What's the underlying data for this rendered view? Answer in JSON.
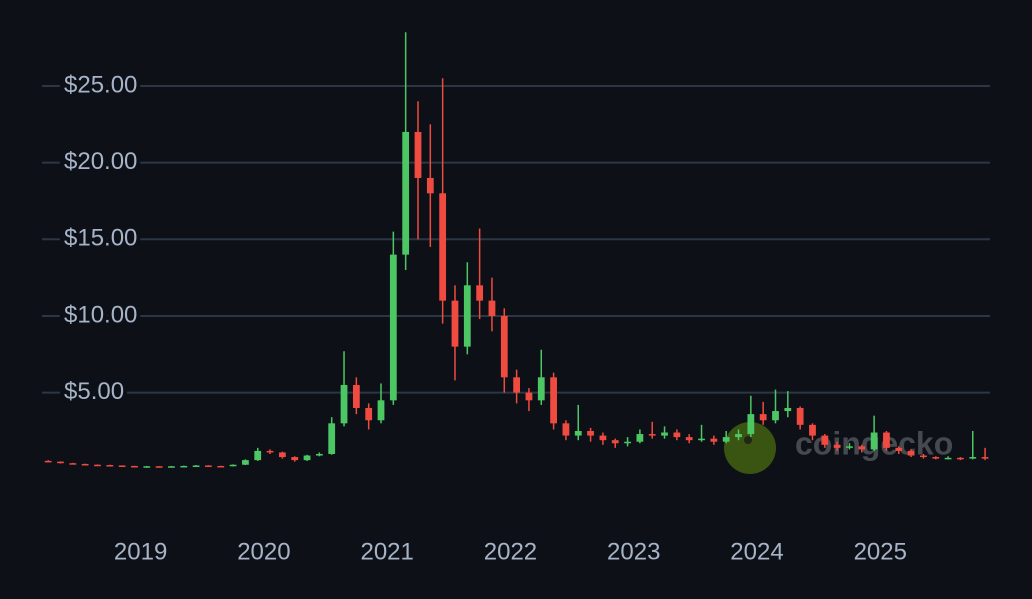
{
  "chart_data": {
    "type": "candlestick",
    "x": [
      2018.25,
      2018.35,
      2018.45,
      2018.55,
      2018.65,
      2018.75,
      2018.85,
      2018.95,
      2019.05,
      2019.15,
      2019.25,
      2019.35,
      2019.45,
      2019.55,
      2019.65,
      2019.75,
      2019.85,
      2019.95,
      2020.05,
      2020.15,
      2020.25,
      2020.35,
      2020.45,
      2020.55,
      2020.65,
      2020.75,
      2020.85,
      2020.95,
      2021.05,
      2021.15,
      2021.25,
      2021.35,
      2021.45,
      2021.55,
      2021.65,
      2021.75,
      2021.85,
      2021.95,
      2022.05,
      2022.15,
      2022.25,
      2022.35,
      2022.45,
      2022.55,
      2022.65,
      2022.75,
      2022.85,
      2022.95,
      2023.05,
      2023.15,
      2023.25,
      2023.35,
      2023.45,
      2023.55,
      2023.65,
      2023.75,
      2023.85,
      2023.95,
      2024.05,
      2024.15,
      2024.25,
      2024.35,
      2024.45,
      2024.55,
      2024.65,
      2024.75,
      2024.85,
      2024.95,
      2025.05,
      2025.15,
      2025.25,
      2025.35,
      2025.45,
      2025.55,
      2025.65,
      2025.75,
      2025.85
    ],
    "open": [
      0.55,
      0.5,
      0.4,
      0.35,
      0.3,
      0.28,
      0.25,
      0.22,
      0.2,
      0.2,
      0.18,
      0.2,
      0.22,
      0.25,
      0.22,
      0.2,
      0.3,
      0.6,
      1.2,
      1.1,
      0.8,
      0.6,
      0.9,
      1.0,
      3.0,
      5.5,
      4.0,
      3.2,
      4.5,
      14,
      22,
      19,
      18,
      11,
      8,
      12,
      11,
      10,
      6,
      5,
      4.5,
      6,
      3,
      2.2,
      2.5,
      2.2,
      1.9,
      1.7,
      1.8,
      2.3,
      2.2,
      2.4,
      2.1,
      1.9,
      2.0,
      1.8,
      2.1,
      2.3,
      3.6,
      3.2,
      3.8,
      4.0,
      2.9,
      2.2,
      1.6,
      1.4,
      1.5,
      1.3,
      2.4,
      1.4,
      1.2,
      0.9,
      0.8,
      0.7,
      0.75,
      0.7,
      0.8
    ],
    "high": [
      0.6,
      0.52,
      0.42,
      0.37,
      0.32,
      0.3,
      0.26,
      0.23,
      0.22,
      0.21,
      0.22,
      0.24,
      0.28,
      0.27,
      0.23,
      0.32,
      0.65,
      1.4,
      1.3,
      1.15,
      0.85,
      0.95,
      1.1,
      3.4,
      7.7,
      6.0,
      4.3,
      5.6,
      15.5,
      28.5,
      24,
      22.5,
      25.5,
      12,
      13.5,
      15.7,
      12.5,
      10.5,
      6.5,
      5.3,
      7.8,
      6.3,
      3.2,
      4.2,
      2.7,
      2.4,
      2.0,
      2.1,
      2.6,
      3.1,
      2.8,
      2.6,
      2.3,
      2.9,
      2.2,
      2.5,
      2.6,
      4.8,
      4.4,
      5.2,
      5.1,
      4.1,
      3.0,
      2.3,
      1.8,
      1.7,
      1.6,
      3.5,
      2.5,
      1.5,
      1.3,
      1.0,
      0.85,
      0.85,
      0.8,
      2.5,
      1.4
    ],
    "low": [
      0.45,
      0.38,
      0.33,
      0.28,
      0.26,
      0.24,
      0.21,
      0.19,
      0.18,
      0.17,
      0.17,
      0.19,
      0.21,
      0.2,
      0.18,
      0.19,
      0.28,
      0.55,
      1.0,
      0.7,
      0.5,
      0.55,
      0.85,
      0.95,
      2.8,
      3.6,
      2.6,
      3.0,
      4.2,
      13,
      15,
      14.5,
      9.5,
      5.8,
      7.5,
      9.8,
      9,
      5,
      4.3,
      3.8,
      4.2,
      2.6,
      1.9,
      1.9,
      1.8,
      1.6,
      1.4,
      1.5,
      1.7,
      2.0,
      2.0,
      1.9,
      1.7,
      1.8,
      1.6,
      1.7,
      1.9,
      2.1,
      2.9,
      3.0,
      3.4,
      2.6,
      1.9,
      1.4,
      1.2,
      1.3,
      1.1,
      1.2,
      1.2,
      1.0,
      0.8,
      0.7,
      0.65,
      0.65,
      0.6,
      0.65,
      0.6
    ],
    "close": [
      0.5,
      0.4,
      0.35,
      0.3,
      0.28,
      0.25,
      0.22,
      0.2,
      0.2,
      0.18,
      0.2,
      0.22,
      0.25,
      0.22,
      0.2,
      0.3,
      0.6,
      1.2,
      1.1,
      0.8,
      0.6,
      0.9,
      1.0,
      3.0,
      5.5,
      4.0,
      3.2,
      4.5,
      14,
      22,
      19,
      18,
      11,
      8,
      12,
      11,
      10,
      6,
      5,
      4.5,
      6,
      3,
      2.2,
      2.5,
      2.2,
      1.9,
      1.7,
      1.8,
      2.3,
      2.2,
      2.4,
      2.1,
      1.9,
      2.0,
      1.8,
      2.1,
      2.3,
      3.6,
      3.2,
      3.8,
      4.0,
      2.9,
      2.2,
      1.6,
      1.4,
      1.5,
      1.3,
      2.4,
      1.4,
      1.2,
      0.9,
      0.8,
      0.7,
      0.75,
      0.7,
      0.8,
      0.7
    ],
    "up_color": "#4cc764",
    "down_color": "#ef4b40",
    "xlim": [
      2018.2,
      2025.89
    ],
    "xticks": [
      2019,
      2020,
      2021,
      2022,
      2023,
      2024,
      2025
    ],
    "ylim": [
      -2,
      29.3
    ],
    "yticks": [
      {
        "value": 5,
        "label": "$5.00"
      },
      {
        "value": 10,
        "label": "$10.00"
      },
      {
        "value": 15,
        "label": "$15.00"
      },
      {
        "value": 20,
        "label": "$20.00"
      },
      {
        "value": 25,
        "label": "$25.00"
      }
    ],
    "grid": true,
    "watermark": "coingecko"
  }
}
